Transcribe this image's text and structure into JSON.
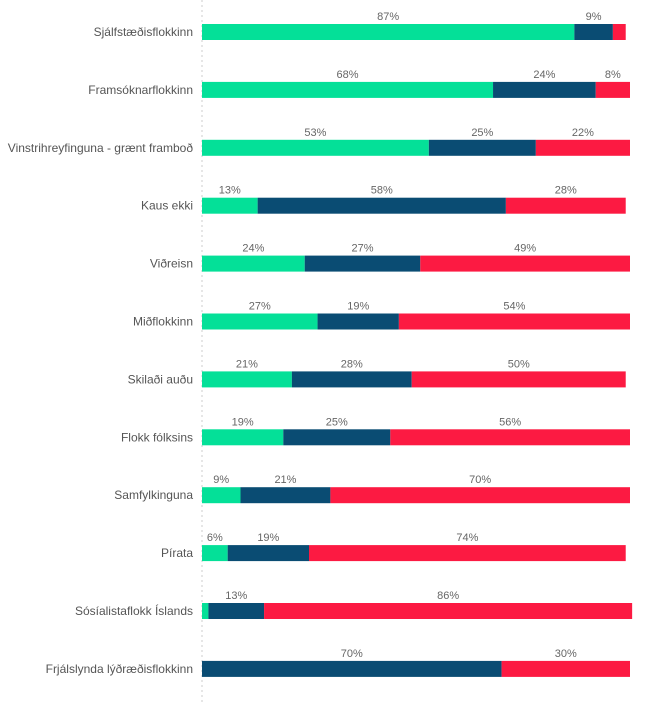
{
  "chart_data": {
    "type": "bar",
    "orientation": "horizontal",
    "stacked": true,
    "normalized": true,
    "categories": [
      "Sjálfstæðisflokkinn",
      "Framsóknarflokkinn",
      "Vinstrihreyfinguna - grænt framboð",
      "Kaus ekki",
      "Viðreisn",
      "Miðflokkinn",
      "Skilaði auðu",
      "Flokk fólksins",
      "Samfylkinguna",
      "Pírata",
      "Sósíalistaflokk Íslands",
      "Frjálslynda lýðræðisflokkinn"
    ],
    "series": [
      {
        "color": "#04e098",
        "values": [
          87,
          68,
          53,
          13,
          24,
          27,
          21,
          19,
          9,
          6,
          1.5,
          0
        ],
        "labels": [
          "87%",
          "68%",
          "53%",
          "13%",
          "24%",
          "27%",
          "21%",
          "19%",
          "9%",
          "6%",
          "",
          ""
        ]
      },
      {
        "color": "#0a4c73",
        "values": [
          9,
          24,
          25,
          58,
          27,
          19,
          28,
          25,
          21,
          19,
          13,
          70
        ],
        "labels": [
          "9%",
          "24%",
          "25%",
          "58%",
          "27%",
          "19%",
          "28%",
          "25%",
          "21%",
          "19%",
          "13%",
          "70%"
        ]
      },
      {
        "color": "#fc1a42",
        "values": [
          3,
          8,
          22,
          28,
          49,
          54,
          50,
          56,
          70,
          74,
          86,
          30
        ],
        "labels": [
          "",
          "8%",
          "22%",
          "28%",
          "49%",
          "54%",
          "50%",
          "56%",
          "70%",
          "74%",
          "86%",
          "30%"
        ]
      }
    ],
    "title": "",
    "xlabel": "",
    "ylabel": "",
    "xlim": [
      0,
      100
    ],
    "legend": "none",
    "grid": false
  }
}
